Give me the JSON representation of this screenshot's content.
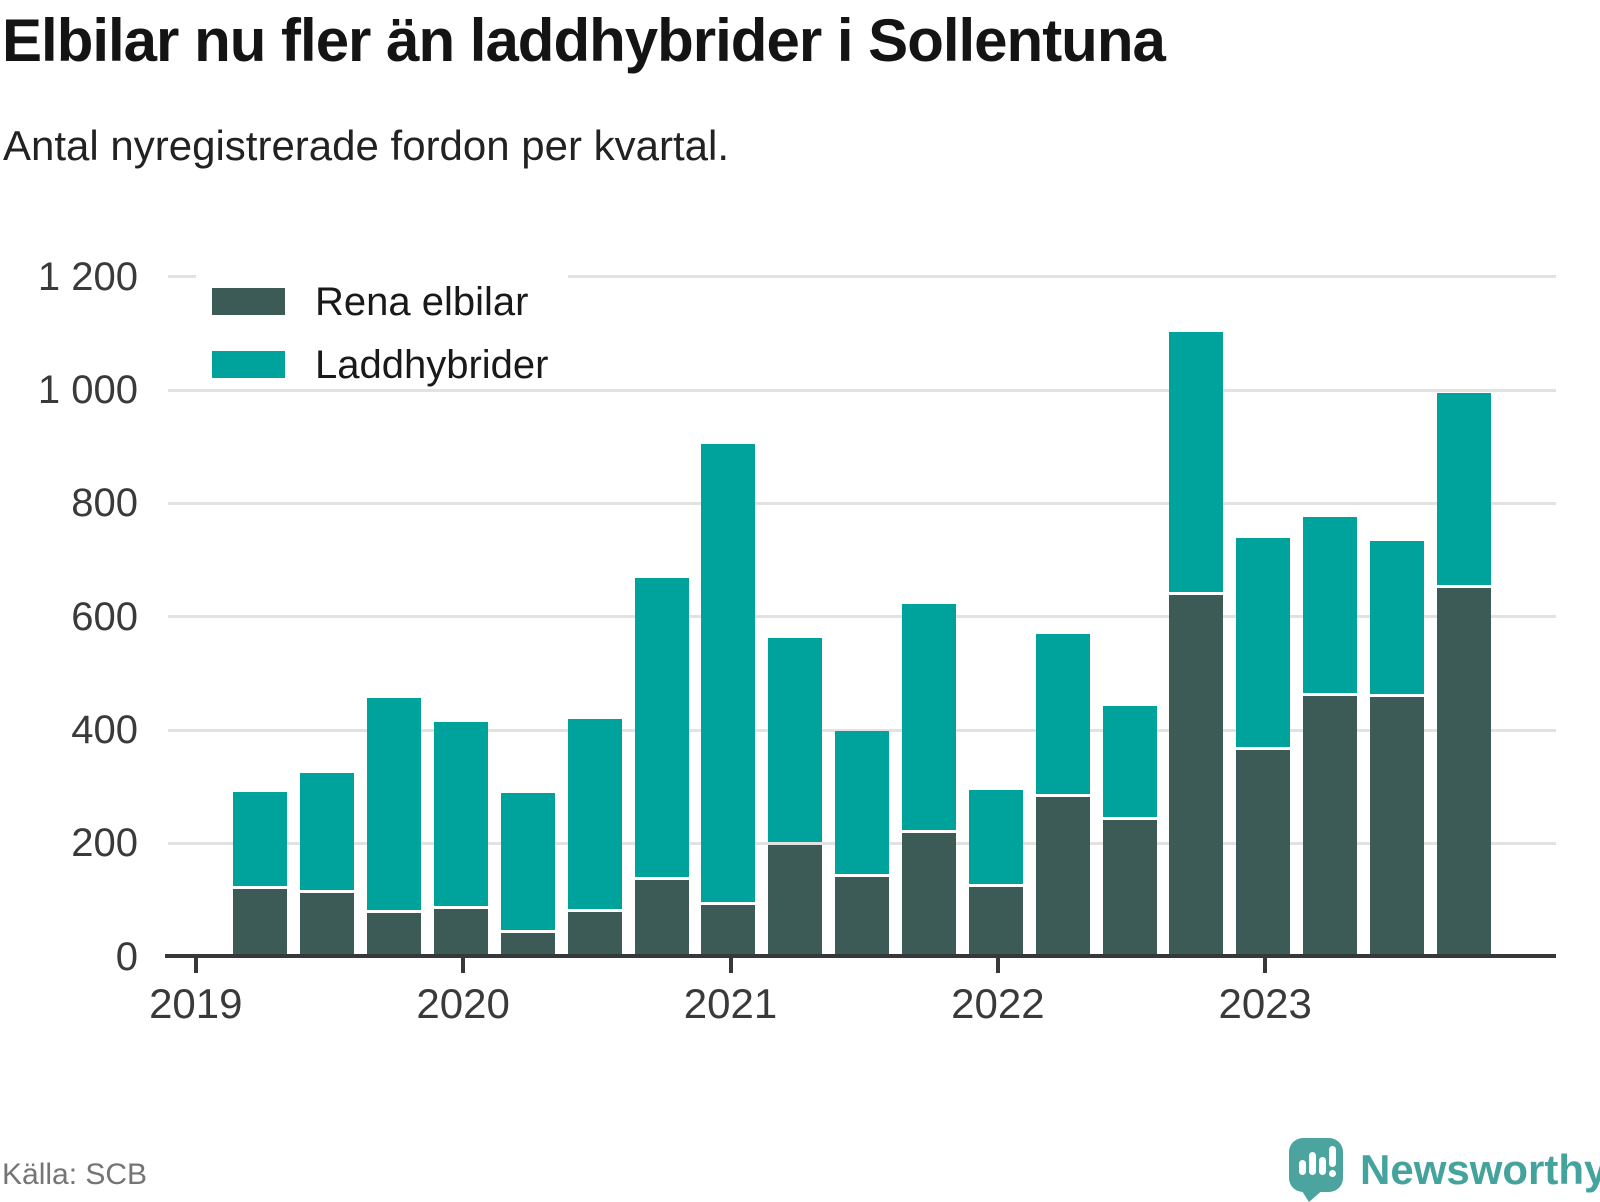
{
  "title": "Elbilar nu fler än laddhybrider i Sollentuna",
  "subtitle": "Antal nyregistrerade fordon per kvartal.",
  "source": "Källa: SCB",
  "brand": {
    "name": "Newsworthy",
    "color": "#4ba59e"
  },
  "legend": [
    {
      "label": "Rena elbilar",
      "color": "#3d5b56"
    },
    {
      "label": "Laddhybrider",
      "color": "#00a39b"
    }
  ],
  "chart_data": {
    "type": "bar",
    "stacked": true,
    "title": "Elbilar nu fler än laddhybrider i Sollentuna",
    "subtitle": "Antal nyregistrerade fordon per kvartal.",
    "categories": [
      "2019 Q2",
      "2019 Q3",
      "2019 Q4",
      "2020 Q1",
      "2020 Q2",
      "2020 Q3",
      "2020 Q4",
      "2021 Q1",
      "2021 Q2",
      "2021 Q3",
      "2021 Q4",
      "2022 Q1",
      "2022 Q2",
      "2022 Q3",
      "2022 Q4",
      "2023 Q1",
      "2023 Q2",
      "2023 Q3",
      "2023 Q4"
    ],
    "series": [
      {
        "name": "Rena elbilar",
        "color": "#3d5b56",
        "values": [
          122,
          115,
          79,
          86,
          44,
          81,
          138,
          94,
          199,
          143,
          220,
          126,
          284,
          243,
          641,
          368,
          462,
          461,
          654
        ]
      },
      {
        "name": "Laddhybrider",
        "color": "#00a39b",
        "values": [
          169,
          209,
          378,
          329,
          244,
          338,
          531,
          810,
          363,
          256,
          402,
          168,
          286,
          200,
          462,
          371,
          314,
          273,
          341
        ]
      }
    ],
    "stack_totals": [
      291,
      324,
      457,
      415,
      288,
      419,
      669,
      904,
      562,
      399,
      622,
      294,
      570,
      443,
      1103,
      739,
      776,
      734,
      995
    ],
    "xlabel": "",
    "ylabel": "",
    "x_tick_labels": [
      "2019",
      "2020",
      "2021",
      "2022",
      "2023"
    ],
    "y_ticks": [
      0,
      200,
      400,
      600,
      800,
      1000,
      1200
    ],
    "y_tick_labels": [
      "0",
      "200",
      "400",
      "600",
      "800",
      "1 000",
      "1 200"
    ],
    "ylim": [
      0,
      1200
    ],
    "grid": "horizontal",
    "legend_position": "top-left",
    "gridline_color": "#e2e2e2",
    "axis_color": "#37383a"
  }
}
